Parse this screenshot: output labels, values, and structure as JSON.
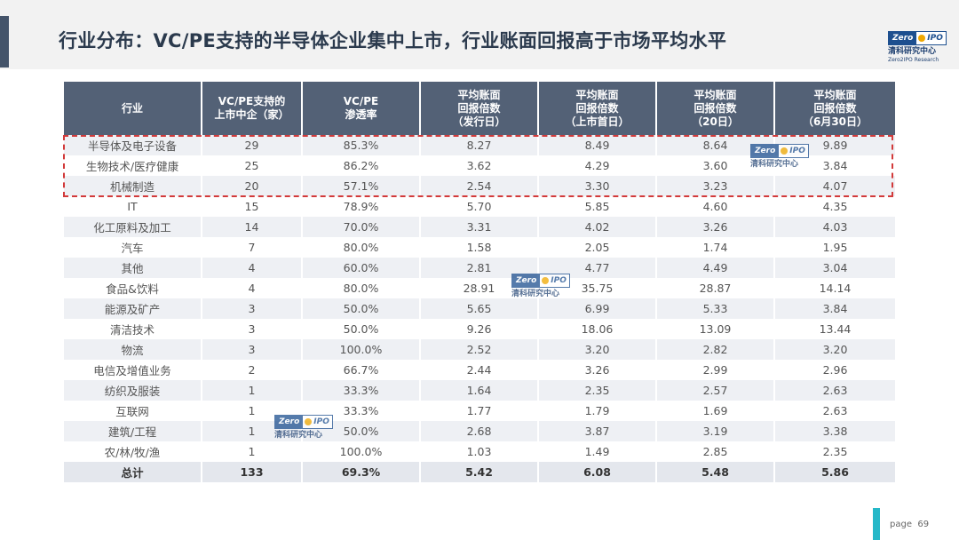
{
  "slide": {
    "title": "行业分布：VC/PE支持的半导体企业集中上市，行业账面回报高于市场平均水平",
    "page_label": "page",
    "page_number": "69"
  },
  "logo": {
    "badge_left": "Zero",
    "badge_right": "IPO",
    "name_cn": "清科研究中心",
    "name_en": "Zero2IPO Research"
  },
  "table": {
    "headers": [
      "行业",
      "VC/PE支持的\n上市中企（家）",
      "VC/PE\n渗透率",
      "平均账面\n回报倍数\n（发行日）",
      "平均账面\n回报倍数\n（上市首日）",
      "平均账面\n回报倍数\n（20日）",
      "平均账面\n回报倍数\n（6月30日）"
    ],
    "rows": [
      [
        "半导体及电子设备",
        "29",
        "85.3%",
        "8.27",
        "8.49",
        "8.64",
        "9.89"
      ],
      [
        "生物技术/医疗健康",
        "25",
        "86.2%",
        "3.62",
        "4.29",
        "3.60",
        "3.84"
      ],
      [
        "机械制造",
        "20",
        "57.1%",
        "2.54",
        "3.30",
        "3.23",
        "4.07"
      ],
      [
        "IT",
        "15",
        "78.9%",
        "5.70",
        "5.85",
        "4.60",
        "4.35"
      ],
      [
        "化工原料及加工",
        "14",
        "70.0%",
        "3.31",
        "4.02",
        "3.26",
        "4.03"
      ],
      [
        "汽车",
        "7",
        "80.0%",
        "1.58",
        "2.05",
        "1.74",
        "1.95"
      ],
      [
        "其他",
        "4",
        "60.0%",
        "2.81",
        "4.77",
        "4.49",
        "3.04"
      ],
      [
        "食品&饮料",
        "4",
        "80.0%",
        "28.91",
        "35.75",
        "28.87",
        "14.14"
      ],
      [
        "能源及矿产",
        "3",
        "50.0%",
        "5.65",
        "6.99",
        "5.33",
        "3.84"
      ],
      [
        "清洁技术",
        "3",
        "50.0%",
        "9.26",
        "18.06",
        "13.09",
        "13.44"
      ],
      [
        "物流",
        "3",
        "100.0%",
        "2.52",
        "3.20",
        "2.82",
        "3.20"
      ],
      [
        "电信及增值业务",
        "2",
        "66.7%",
        "2.44",
        "3.26",
        "2.99",
        "2.96"
      ],
      [
        "纺织及服装",
        "1",
        "33.3%",
        "1.64",
        "2.35",
        "2.57",
        "2.63"
      ],
      [
        "互联网",
        "1",
        "33.3%",
        "1.77",
        "1.79",
        "1.69",
        "2.63"
      ],
      [
        "建筑/工程",
        "1",
        "50.0%",
        "2.68",
        "3.87",
        "3.19",
        "3.38"
      ],
      [
        "农/林/牧/渔",
        "1",
        "100.0%",
        "1.03",
        "1.49",
        "2.85",
        "2.35"
      ]
    ],
    "total": [
      "总计",
      "133",
      "69.3%",
      "5.42",
      "6.08",
      "5.48",
      "5.86"
    ]
  },
  "colors": {
    "header_bg": "#536176",
    "highlight_border": "#d23a3a",
    "page_accent": "#25b8c8"
  }
}
